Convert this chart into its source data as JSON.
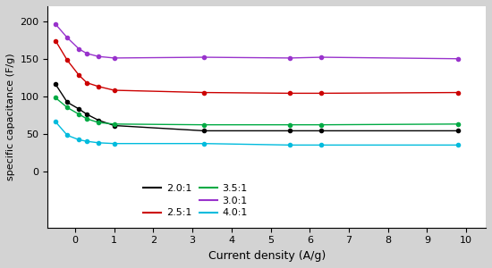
{
  "title": "",
  "xlabel": "Current density (A/g)",
  "ylabel": "specific capacitance (F/g)",
  "xlim": [
    -0.7,
    10.5
  ],
  "ylim": [
    -75,
    220
  ],
  "yticks": [
    0,
    50,
    100,
    150,
    200
  ],
  "xticks": [
    0,
    1,
    2,
    3,
    4,
    5,
    6,
    7,
    8,
    9,
    10
  ],
  "background_color": "#d3d3d3",
  "plot_bg": "#ffffff",
  "series": [
    {
      "label": "2.0:1",
      "color": "#000000",
      "x": [
        -0.5,
        -0.2,
        0.1,
        0.3,
        0.6,
        1.0,
        3.3,
        5.5,
        6.3,
        9.8
      ],
      "y": [
        116,
        92,
        83,
        76,
        68,
        61,
        54,
        54,
        54,
        54
      ]
    },
    {
      "label": "2.5:1",
      "color": "#cc0000",
      "x": [
        -0.5,
        -0.2,
        0.1,
        0.3,
        0.6,
        1.0,
        3.3,
        5.5,
        6.3,
        9.8
      ],
      "y": [
        174,
        148,
        128,
        118,
        113,
        108,
        105,
        104,
        104,
        105
      ]
    },
    {
      "label": "3.0:1",
      "color": "#9933cc",
      "x": [
        -0.5,
        -0.2,
        0.1,
        0.3,
        0.6,
        1.0,
        3.3,
        5.5,
        6.3,
        9.8
      ],
      "y": [
        196,
        178,
        163,
        157,
        153,
        151,
        152,
        151,
        152,
        150
      ]
    },
    {
      "label": "3.5:1",
      "color": "#00aa44",
      "x": [
        -0.5,
        -0.2,
        0.1,
        0.3,
        0.6,
        1.0,
        3.3,
        5.5,
        6.3,
        9.8
      ],
      "y": [
        98,
        85,
        76,
        70,
        65,
        63,
        62,
        62,
        62,
        63
      ]
    },
    {
      "label": "4.0:1",
      "color": "#00bbdd",
      "x": [
        -0.5,
        -0.2,
        0.1,
        0.3,
        0.6,
        1.0,
        3.3,
        5.5,
        6.3,
        9.8
      ],
      "y": [
        66,
        48,
        42,
        40,
        38,
        37,
        37,
        35,
        35,
        35
      ]
    }
  ],
  "legend_order": [
    0,
    1,
    3,
    2,
    4
  ],
  "legend_ncols": 2,
  "legend_fontsize": 8
}
